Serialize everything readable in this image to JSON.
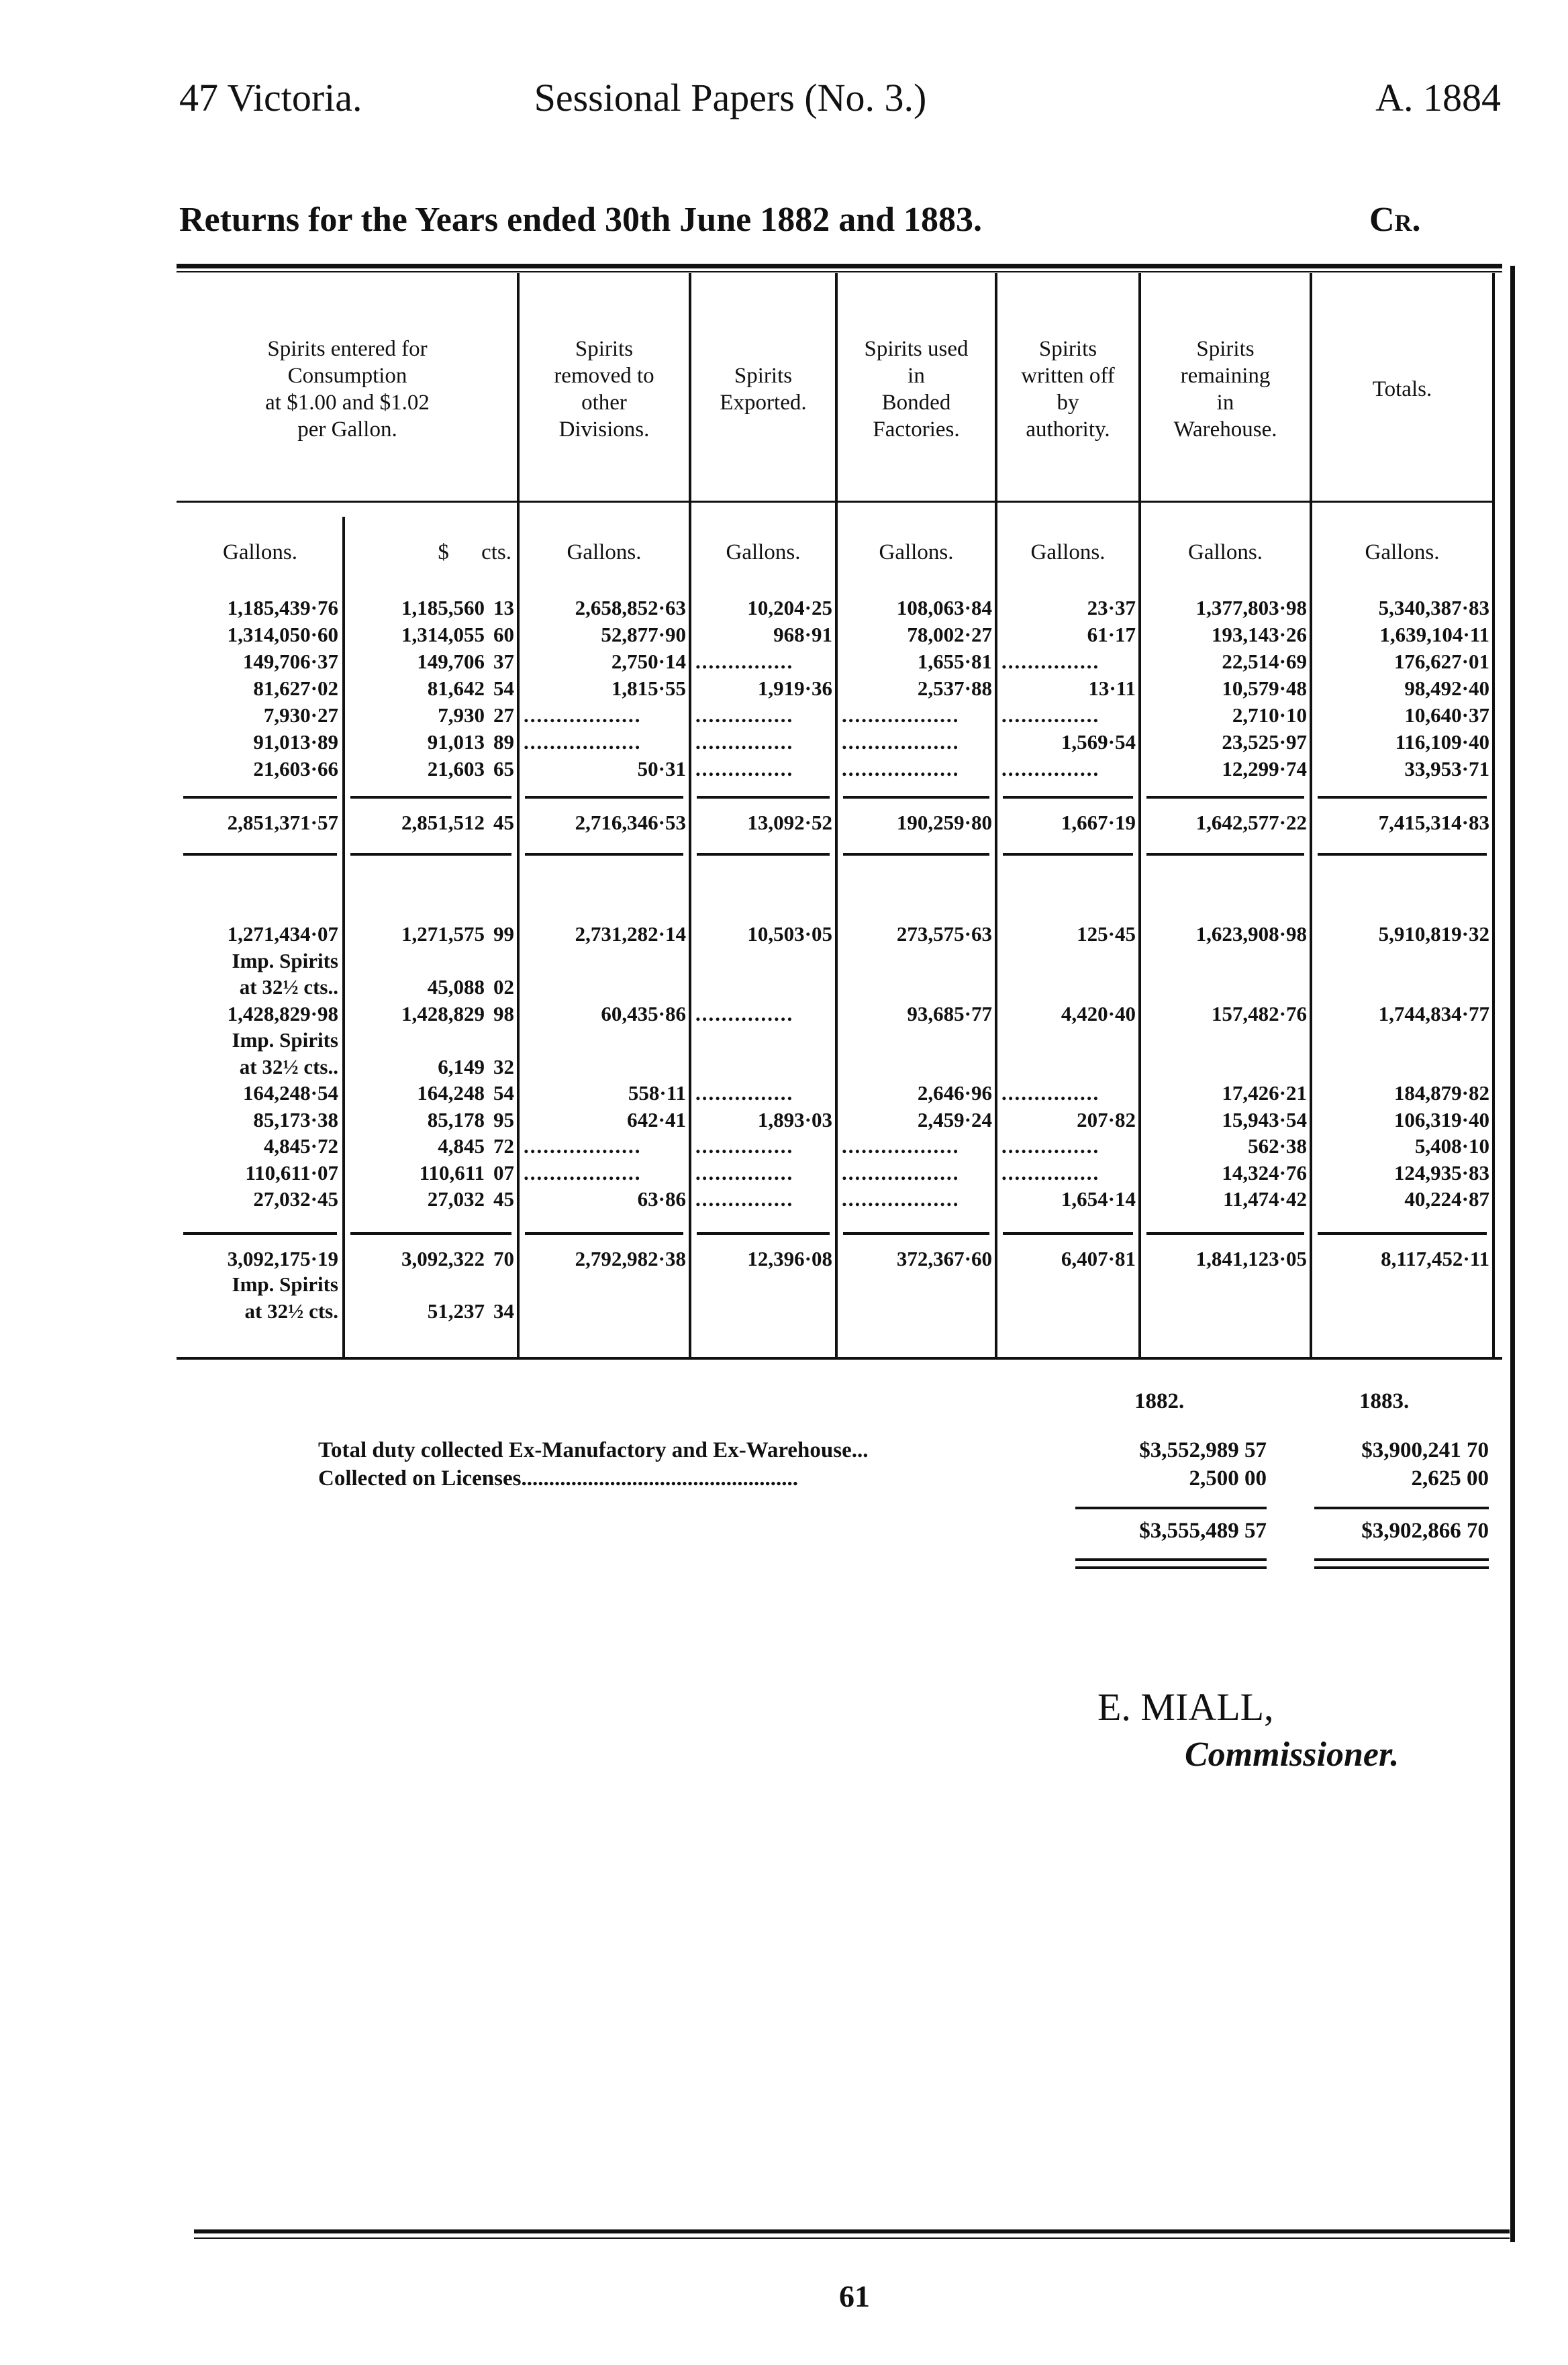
{
  "header": {
    "left": "47 Victoria.",
    "center": "Sessional Papers (No. 3.)",
    "right": "A. 1884"
  },
  "subtitle": {
    "title": "Returns for the Years ended 30th June 1882 and 1883.",
    "side": "Cr."
  },
  "table": {
    "columns": [
      "Spirits entered for\nConsumption\nat $1.00 and $1.02\nper Gallon.",
      "Spirits\nremoved to\nother\nDivisions.",
      "Spirits\nExported.",
      "Spirits used\nin\nBonded\nFactories.",
      "Spirits\nwritten off\nby\nauthority.",
      "Spirits\nremaining\nin\nWarehouse.",
      "Totals."
    ],
    "units": [
      "Gallons.",
      "$ cts.",
      "Gallons.",
      "Gallons.",
      "Gallons.",
      "Gallons.",
      "Gallons.",
      "Gallons."
    ],
    "block_1882": {
      "rows": [
        [
          "1,185,439·76",
          "1,185,560",
          "13",
          "2,658,852·63",
          "10,204·25",
          "108,063·84",
          "23·37",
          "1,377,803·98",
          "5,340,387·83"
        ],
        [
          "1,314,050·60",
          "1,314,055",
          "60",
          "52,877·90",
          "968·91",
          "78,002·27",
          "61·17",
          "193,143·26",
          "1,639,104·11"
        ],
        [
          "149,706·37",
          "149,706",
          "37",
          "2,750·14",
          "...............",
          "1,655·81",
          "...............",
          "22,514·69",
          "176,627·01"
        ],
        [
          "81,627·02",
          "81,642",
          "54",
          "1,815·55",
          "1,919·36",
          "2,537·88",
          "13·11",
          "10,579·48",
          "98,492·40"
        ],
        [
          "7,930·27",
          "7,930",
          "27",
          "..................",
          "...............",
          "..................",
          "...............",
          "2,710·10",
          "10,640·37"
        ],
        [
          "91,013·89",
          "91,013",
          "89",
          "..................",
          "...............",
          "..................",
          "1,569·54",
          "23,525·97",
          "116,109·40"
        ],
        [
          "21,603·66",
          "21,603",
          "65",
          "50·31",
          "...............",
          "..................",
          "...............",
          "12,299·74",
          "33,953·71"
        ]
      ],
      "total": [
        "2,851,371·57",
        "2,851,512",
        "45",
        "2,716,346·53",
        "13,092·52",
        "190,259·80",
        "1,667·19",
        "1,642,577·22",
        "7,415,314·83"
      ]
    },
    "block_1883": {
      "rows": [
        [
          "1,271,434·07",
          "1,271,575",
          "99",
          "2,731,282·14",
          "10,503·05",
          "273,575·63",
          "125·45",
          "1,623,908·98",
          "5,910,819·32"
        ],
        [
          "Imp. Spirits",
          "",
          "",
          "",
          "",
          "",
          "",
          "",
          ""
        ],
        [
          "at 32½ cts..",
          "45,088",
          "02",
          "",
          "",
          "",
          "",
          "",
          ""
        ],
        [
          "1,428,829·98",
          "1,428,829",
          "98",
          "60,435·86",
          "...............",
          "93,685·77",
          "4,420·40",
          "157,482·76",
          "1,744,834·77"
        ],
        [
          "Imp. Spirits",
          "",
          "",
          "",
          "",
          "",
          "",
          "",
          ""
        ],
        [
          "at 32½ cts..",
          "6,149",
          "32",
          "",
          "",
          "",
          "",
          "",
          ""
        ],
        [
          "164,248·54",
          "164,248",
          "54",
          "558·11",
          "...............",
          "2,646·96",
          "...............",
          "17,426·21",
          "184,879·82"
        ],
        [
          "85,173·38",
          "85,178",
          "95",
          "642·41",
          "1,893·03",
          "2,459·24",
          "207·82",
          "15,943·54",
          "106,319·40"
        ],
        [
          "4,845·72",
          "4,845",
          "72",
          "..................",
          "...............",
          "..................",
          "...............",
          "562·38",
          "5,408·10"
        ],
        [
          "110,611·07",
          "110,611",
          "07",
          "..................",
          "...............",
          "..................",
          "...............",
          "14,324·76",
          "124,935·83"
        ],
        [
          "27,032·45",
          "27,032",
          "45",
          "63·86",
          "...............",
          "..................",
          "1,654·14",
          "11,474·42",
          "40,224·87"
        ]
      ],
      "total": [
        "3,092,175·19",
        "3,092,322",
        "70",
        "2,792,982·38",
        "12,396·08",
        "372,367·60",
        "6,407·81",
        "1,841,123·05",
        "8,117,452·11"
      ],
      "total_extra": [
        [
          "Imp. Spirits",
          "",
          "",
          "",
          "",
          "",
          "",
          "",
          ""
        ],
        [
          "at 32½ cts.",
          "51,237",
          "34",
          "",
          "",
          "",
          "",
          "",
          ""
        ]
      ]
    }
  },
  "summary": {
    "years": [
      "1882.",
      "1883."
    ],
    "lines": [
      {
        "label": "Total duty collected Ex-Manufactory and Ex-Warehouse...",
        "y1882": "$3,552,989 57",
        "y1883": "$3,900,241 70"
      },
      {
        "label": "Collected on Licenses..................................................",
        "y1882": "2,500 00",
        "y1883": "2,625 00"
      }
    ],
    "totals": {
      "y1882": "$3,555,489 57",
      "y1883": "$3,902,866 70"
    }
  },
  "signature": {
    "name": "E. MIALL,",
    "title": "Commissioner."
  },
  "page_number": "61"
}
